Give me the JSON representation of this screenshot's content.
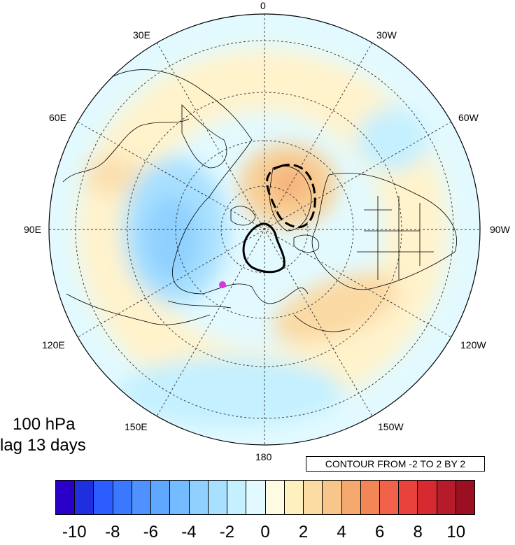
{
  "map": {
    "lon_labels": {
      "top": "0",
      "e30": "30E",
      "w30": "30W",
      "e60": "60E",
      "w60": "60W",
      "e90": "90E",
      "w90": "90W",
      "e120": "120E",
      "w120": "120W",
      "e150": "150E",
      "w150": "150W",
      "bottom": "180"
    },
    "marker_color": "#dd33dd"
  },
  "annotation": {
    "level": "100 hPa",
    "lag": "lag 13 days",
    "contour_note": "CONTOUR FROM -2 TO 2 BY 2"
  },
  "colorbar": {
    "colors": [
      "#2a00c8",
      "#1f2fe0",
      "#2b5cff",
      "#3a78ff",
      "#4f92ff",
      "#5ea8ff",
      "#74bcff",
      "#8fd0ff",
      "#a8e0ff",
      "#c4f0ff",
      "#e2faff",
      "#fffbe2",
      "#fff0c0",
      "#fddca4",
      "#f8c58a",
      "#f6a96e",
      "#f38657",
      "#f2624b",
      "#e9413c",
      "#d62a30",
      "#b61b2b",
      "#9b0f23"
    ],
    "tick_labels": [
      "-10",
      "-8",
      "-6",
      "-4",
      "-2",
      "0",
      "2",
      "4",
      "6",
      "8",
      "10"
    ]
  }
}
